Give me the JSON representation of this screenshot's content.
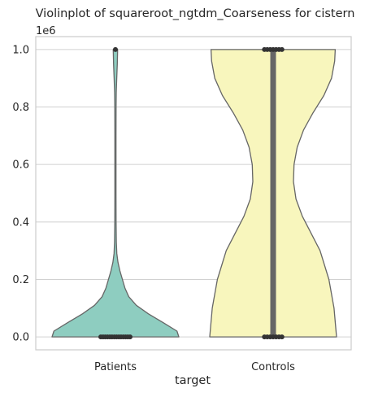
{
  "chart_data": {
    "type": "violin",
    "title": "Violinplot of squareroot_ngtdm_Coarseness for cistern",
    "xlabel": "target",
    "ylabel": "",
    "y_offset_label": "1e6",
    "categories": [
      "Patients",
      "Controls"
    ],
    "ylim": [
      -0.045,
      1.045
    ],
    "yticks": [
      0.0,
      0.2,
      0.4,
      0.6,
      0.8,
      1.0
    ],
    "ytick_labels": [
      "0.0",
      "0.2",
      "0.4",
      "0.6",
      "0.8",
      "1.0"
    ],
    "grid": true,
    "colors": {
      "Patients": "#8ecdc0",
      "Controls": "#f8f6bd",
      "outline": "#666666",
      "box": "#666666",
      "points": "#333333",
      "grid": "#d0d0d0",
      "spine": "#cccccc"
    },
    "violins": [
      {
        "category": "Patients",
        "density_profile": [
          [
            0.0,
            1.0
          ],
          [
            0.02,
            0.97
          ],
          [
            0.05,
            0.75
          ],
          [
            0.08,
            0.52
          ],
          [
            0.11,
            0.33
          ],
          [
            0.14,
            0.21
          ],
          [
            0.17,
            0.15
          ],
          [
            0.2,
            0.11
          ],
          [
            0.23,
            0.07
          ],
          [
            0.26,
            0.04
          ],
          [
            0.29,
            0.022
          ],
          [
            0.33,
            0.014
          ],
          [
            0.4,
            0.01
          ],
          [
            0.5,
            0.009
          ],
          [
            0.6,
            0.009
          ],
          [
            0.7,
            0.009
          ],
          [
            0.8,
            0.01
          ],
          [
            0.85,
            0.013
          ],
          [
            0.9,
            0.02
          ],
          [
            0.95,
            0.03
          ],
          [
            1.0,
            0.035
          ]
        ],
        "box": {
          "q1": 0.0,
          "median": 0.0,
          "q3": 0.0
        },
        "points": [
          0.0,
          0.0,
          0.0,
          0.0,
          0.0,
          0.0,
          0.0,
          0.0,
          0.0,
          0.0,
          0.0,
          0.0,
          0.0,
          0.0,
          1.0
        ]
      },
      {
        "category": "Controls",
        "density_profile": [
          [
            0.0,
            1.0
          ],
          [
            0.1,
            0.96
          ],
          [
            0.2,
            0.88
          ],
          [
            0.3,
            0.74
          ],
          [
            0.36,
            0.6
          ],
          [
            0.42,
            0.46
          ],
          [
            0.48,
            0.36
          ],
          [
            0.54,
            0.32
          ],
          [
            0.6,
            0.33
          ],
          [
            0.66,
            0.38
          ],
          [
            0.72,
            0.48
          ],
          [
            0.78,
            0.63
          ],
          [
            0.84,
            0.8
          ],
          [
            0.9,
            0.92
          ],
          [
            0.96,
            0.97
          ],
          [
            1.0,
            0.98
          ]
        ],
        "box": {
          "q1": 0.0,
          "median": 0.5,
          "q3": 1.0
        },
        "points": [
          0.0,
          0.0,
          0.0,
          0.0,
          0.0,
          0.0,
          0.0,
          1.0,
          1.0,
          1.0,
          1.0,
          1.0,
          1.0,
          1.0
        ]
      }
    ]
  }
}
